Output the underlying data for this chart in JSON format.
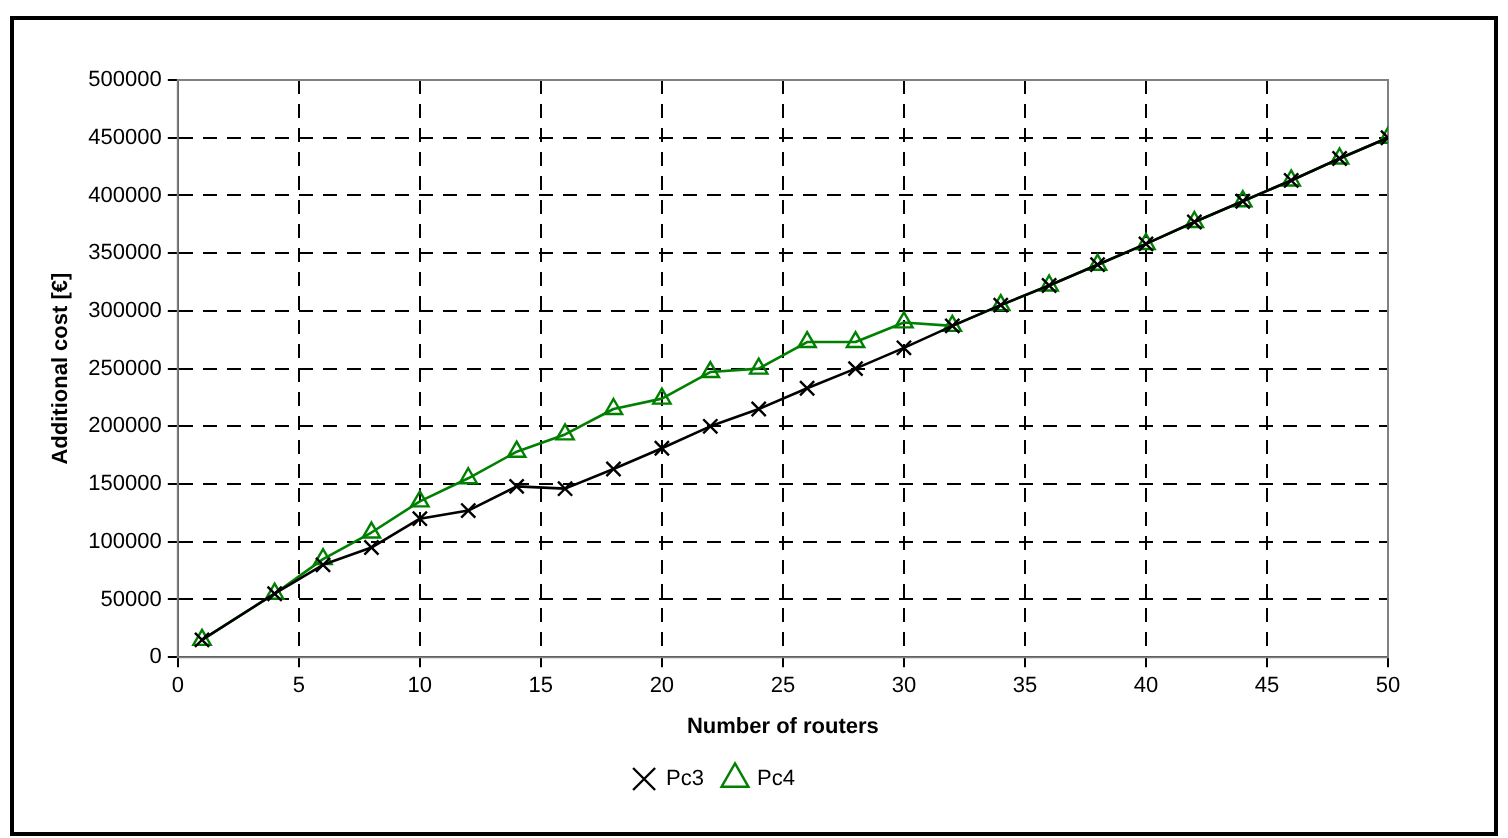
{
  "chart_data": {
    "type": "line",
    "xlabel": "Number of routers",
    "ylabel": "Additional cost [€]",
    "x": [
      1,
      4,
      6,
      8,
      10,
      12,
      14,
      16,
      18,
      20,
      22,
      24,
      26,
      28,
      30,
      32,
      34,
      36,
      38,
      40,
      42,
      44,
      46,
      48,
      50
    ],
    "series": [
      {
        "name": "Pc3",
        "color": "#000000",
        "marker": "cross",
        "values": [
          15000,
          55000,
          80000,
          95000,
          120000,
          127000,
          148000,
          146000,
          163000,
          181000,
          200000,
          215000,
          233000,
          250000,
          268000,
          287000,
          305000,
          322000,
          340000,
          358000,
          377000,
          395000,
          413000,
          432000,
          450000
        ]
      },
      {
        "name": "Pc4",
        "color": "#008000",
        "marker": "triangle",
        "values": [
          15000,
          55000,
          85000,
          108000,
          135000,
          155000,
          178000,
          193000,
          215000,
          224000,
          247000,
          250000,
          273000,
          273000,
          290000,
          287000,
          305000,
          322000,
          340000,
          358000,
          377000,
          395000,
          413000,
          432000,
          450000
        ]
      }
    ],
    "xlim": [
      0,
      50
    ],
    "xticks": [
      0,
      5,
      10,
      15,
      20,
      25,
      30,
      35,
      40,
      45,
      50
    ],
    "ylim": [
      0,
      500000
    ],
    "yticks": [
      0,
      50000,
      100000,
      150000,
      200000,
      250000,
      300000,
      350000,
      400000,
      450000,
      500000
    ],
    "grid": true,
    "legend": "bottom",
    "line_style": "solid"
  }
}
